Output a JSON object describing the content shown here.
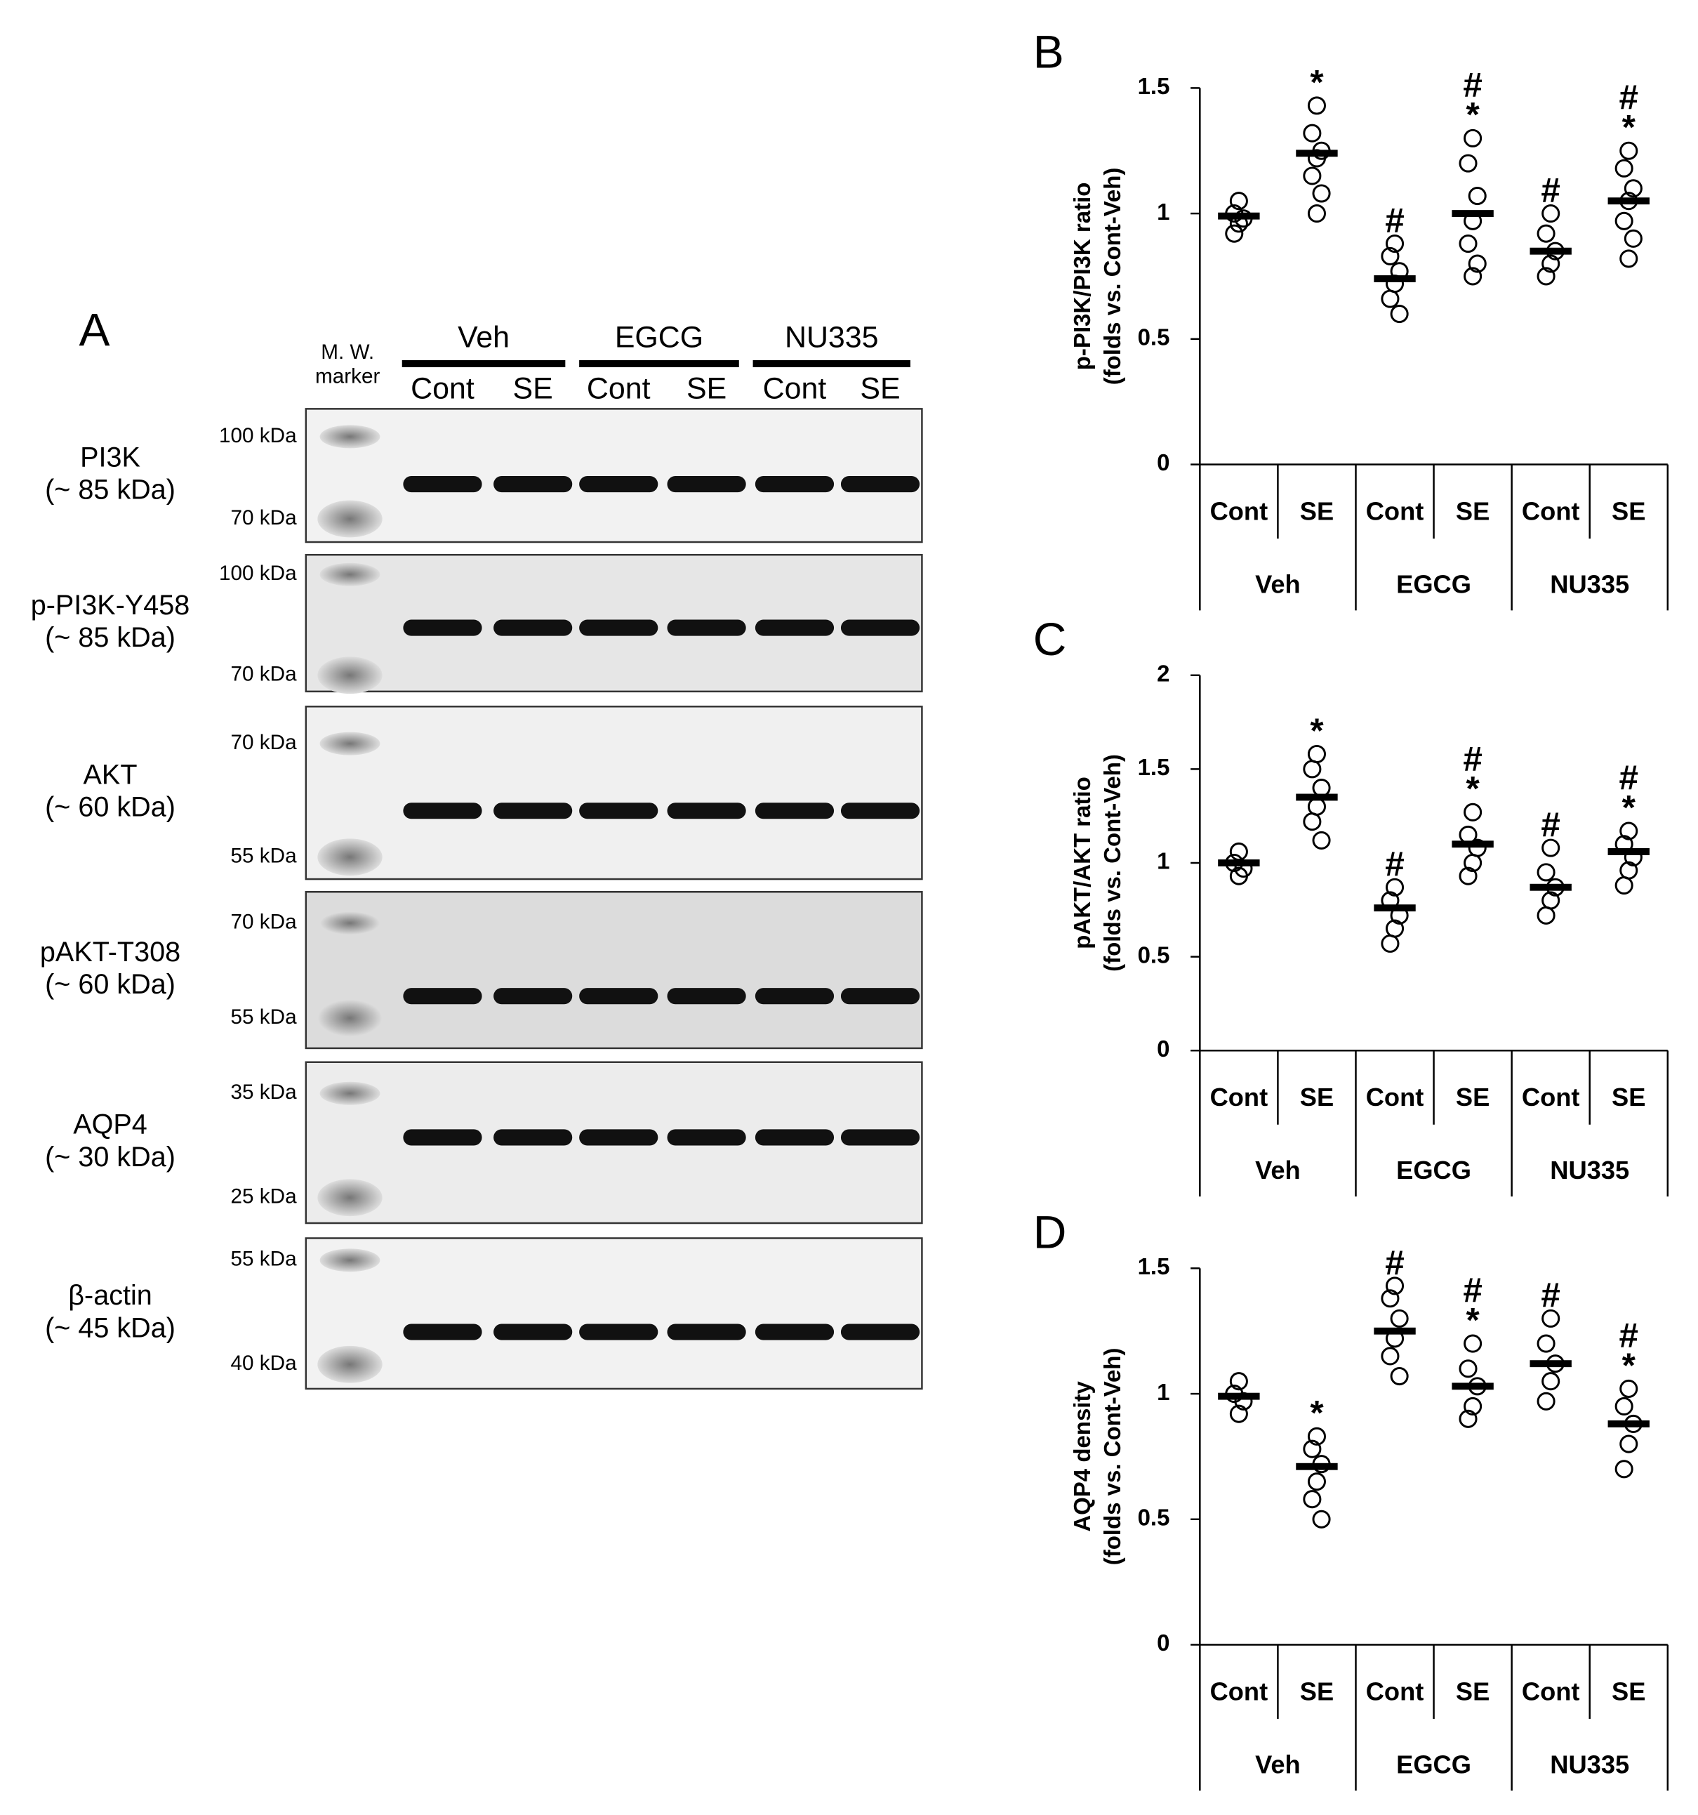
{
  "blot": {
    "letter": "A",
    "marker_label": [
      "M. W.",
      "marker"
    ],
    "groups": [
      "Veh",
      "EGCG",
      "NU335"
    ],
    "lanes": [
      "Cont",
      "SE",
      "Cont",
      "SE",
      "Cont",
      "SE"
    ],
    "rows": [
      {
        "name": "PI3K",
        "size": "(~ 85 kDa)",
        "markers": [
          "100 kDa",
          "70 kDa"
        ]
      },
      {
        "name": "p-PI3K-Y458",
        "size": "(~ 85 kDa)",
        "markers": [
          "100 kDa",
          "70 kDa"
        ]
      },
      {
        "name": "AKT",
        "size": "(~ 60 kDa)",
        "markers": [
          "70 kDa",
          "55 kDa"
        ]
      },
      {
        "name": "pAKT-T308",
        "size": "(~ 60 kDa)",
        "markers": [
          "70 kDa",
          "55 kDa"
        ]
      },
      {
        "name": "AQP4",
        "size": "(~ 30 kDa)",
        "markers": [
          "35 kDa",
          "25 kDa"
        ]
      },
      {
        "name": "β-actin",
        "size": "(~ 45 kDa)",
        "markers": [
          "55 kDa",
          "40 kDa"
        ]
      }
    ]
  },
  "chart_data": [
    {
      "type": "strip",
      "letter": "B",
      "ylabel": [
        "p-PI3K/PI3K ratio",
        "(folds vs. Cont-Veh)"
      ],
      "ylim": [
        0,
        1.5
      ],
      "yticks": [
        0,
        0.5,
        1,
        1.5
      ],
      "categories": [
        "Cont",
        "SE",
        "Cont",
        "SE",
        "Cont",
        "SE"
      ],
      "groups": [
        "Veh",
        "EGCG",
        "NU335"
      ],
      "means": [
        0.99,
        1.24,
        0.74,
        1.0,
        0.85,
        1.05
      ],
      "points": [
        [
          1.05,
          1.0,
          0.98,
          0.96,
          0.92
        ],
        [
          1.43,
          1.32,
          1.25,
          1.22,
          1.15,
          1.08,
          1.0
        ],
        [
          0.88,
          0.83,
          0.77,
          0.72,
          0.66,
          0.6
        ],
        [
          1.3,
          1.2,
          1.07,
          0.97,
          0.88,
          0.8,
          0.75
        ],
        [
          1.0,
          0.92,
          0.85,
          0.8,
          0.75
        ],
        [
          1.25,
          1.18,
          1.1,
          1.05,
          0.97,
          0.9,
          0.82
        ]
      ],
      "annotations": [
        [],
        [
          "*"
        ],
        [
          "#"
        ],
        [
          "#",
          "*"
        ],
        [
          "#"
        ],
        [
          "#",
          "*"
        ]
      ]
    },
    {
      "type": "strip",
      "letter": "C",
      "ylabel": [
        "pAKT/AKT ratio",
        "(folds vs. Cont-Veh)"
      ],
      "ylim": [
        0,
        2
      ],
      "yticks": [
        0,
        0.5,
        1,
        1.5,
        2
      ],
      "categories": [
        "Cont",
        "SE",
        "Cont",
        "SE",
        "Cont",
        "SE"
      ],
      "groups": [
        "Veh",
        "EGCG",
        "NU335"
      ],
      "means": [
        1.0,
        1.35,
        0.76,
        1.1,
        0.87,
        1.06
      ],
      "points": [
        [
          1.06,
          1.0,
          0.97,
          0.93
        ],
        [
          1.58,
          1.5,
          1.4,
          1.3,
          1.22,
          1.12
        ],
        [
          0.87,
          0.8,
          0.72,
          0.65,
          0.57
        ],
        [
          1.27,
          1.15,
          1.08,
          1.0,
          0.93
        ],
        [
          1.08,
          0.95,
          0.87,
          0.8,
          0.72
        ],
        [
          1.17,
          1.1,
          1.03,
          0.96,
          0.88
        ]
      ],
      "annotations": [
        [],
        [
          "*"
        ],
        [
          "#"
        ],
        [
          "#",
          "*"
        ],
        [
          "#"
        ],
        [
          "#",
          "*"
        ]
      ]
    },
    {
      "type": "strip",
      "letter": "D",
      "ylabel": [
        "AQP4 density",
        "(folds vs. Cont-Veh)"
      ],
      "ylim": [
        0,
        1.5
      ],
      "yticks": [
        0,
        0.5,
        1,
        1.5
      ],
      "categories": [
        "Cont",
        "SE",
        "Cont",
        "SE",
        "Cont",
        "SE"
      ],
      "groups": [
        "Veh",
        "EGCG",
        "NU335"
      ],
      "means": [
        0.99,
        0.71,
        1.25,
        1.03,
        1.12,
        0.88
      ],
      "points": [
        [
          1.05,
          1.0,
          0.97,
          0.92
        ],
        [
          0.83,
          0.78,
          0.72,
          0.65,
          0.58,
          0.5
        ],
        [
          1.43,
          1.38,
          1.3,
          1.22,
          1.15,
          1.07
        ],
        [
          1.2,
          1.1,
          1.03,
          0.95,
          0.9
        ],
        [
          1.3,
          1.2,
          1.12,
          1.05,
          0.97
        ],
        [
          1.02,
          0.95,
          0.88,
          0.8,
          0.7
        ]
      ],
      "annotations": [
        [],
        [
          "*"
        ],
        [
          "#"
        ],
        [
          "#",
          "*"
        ],
        [
          "#"
        ],
        [
          "#",
          "*"
        ]
      ]
    }
  ]
}
